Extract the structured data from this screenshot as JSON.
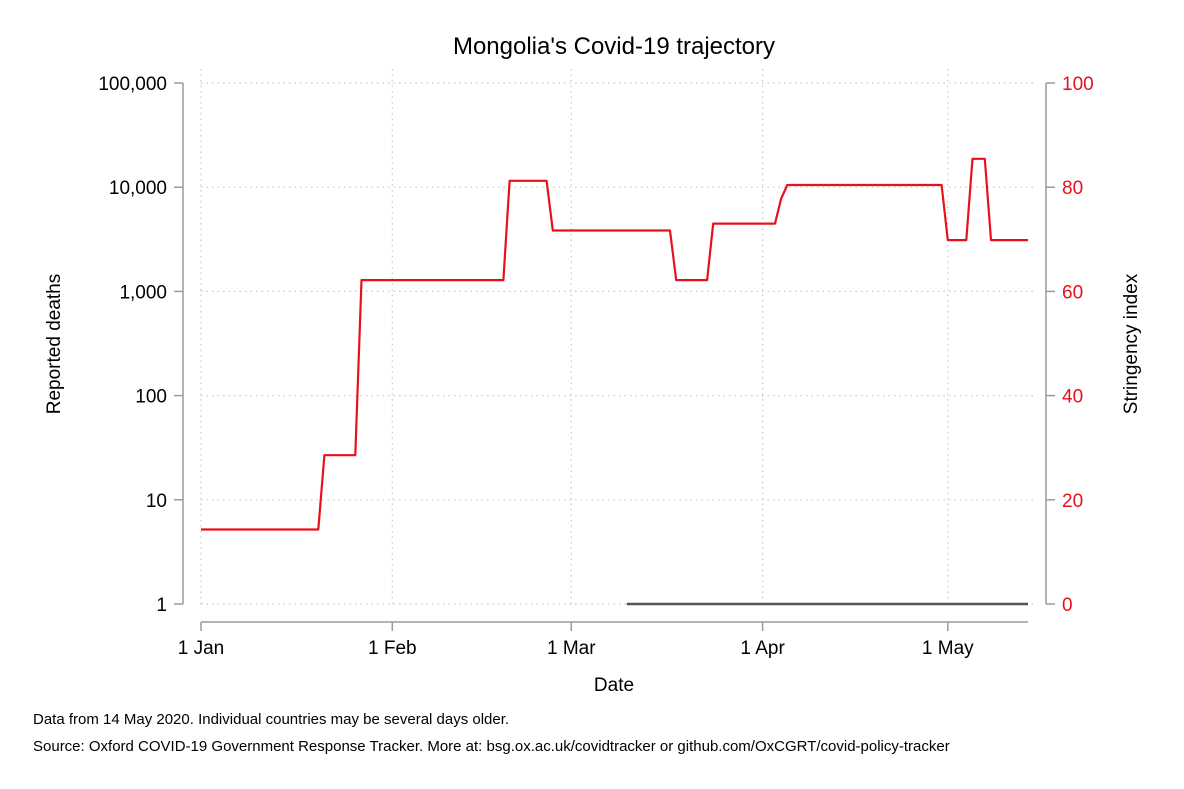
{
  "chart_data": {
    "type": "line",
    "title": "Mongolia's Covid-19 trajectory",
    "xlabel": "Date",
    "ylabel": "Reported deaths",
    "ylabel_right": "Stringency index",
    "x_ticks": [
      "1 Jan",
      "1 Feb",
      "1 Mar",
      "1 Apr",
      "1 May"
    ],
    "y_ticks": [
      "1",
      "10",
      "100",
      "1,000",
      "10,000",
      "100,000"
    ],
    "y_right_ticks": [
      "0",
      "20",
      "40",
      "60",
      "80",
      "100"
    ],
    "x_range": [
      "2020-01-01",
      "2020-05-14"
    ],
    "y_scale": "log",
    "ylim": [
      1,
      100000
    ],
    "y_right_lim": [
      0,
      100
    ],
    "grid": true,
    "colors": {
      "stringency": "#e8111b",
      "deaths": "#555555",
      "axis": "#9a9a9a"
    },
    "series": [
      {
        "name": "Stringency index",
        "axis": "right",
        "x": [
          "2020-01-01",
          "2020-01-20",
          "2020-01-21",
          "2020-01-26",
          "2020-01-27",
          "2020-02-19",
          "2020-02-20",
          "2020-02-26",
          "2020-02-27",
          "2020-03-17",
          "2020-03-18",
          "2020-03-23",
          "2020-03-24",
          "2020-04-03",
          "2020-04-04",
          "2020-04-05",
          "2020-04-30",
          "2020-05-01",
          "2020-05-04",
          "2020-05-05",
          "2020-05-07",
          "2020-05-08",
          "2020-05-14"
        ],
        "values": [
          14.29,
          14.29,
          28.57,
          28.57,
          62.17,
          62.17,
          81.22,
          81.22,
          71.69,
          71.69,
          62.17,
          62.17,
          73.02,
          73.02,
          77.78,
          80.42,
          80.42,
          69.84,
          69.84,
          85.45,
          85.45,
          69.84,
          69.84
        ]
      },
      {
        "name": "Reported deaths",
        "axis": "left",
        "x": [
          "2020-03-10",
          "2020-05-14"
        ],
        "values": [
          1,
          1
        ]
      }
    ]
  },
  "footer": {
    "note": "Data from 14 May 2020. Individual countries may be several days older.",
    "source": "Source: Oxford COVID-19 Government Response Tracker. More at: bsg.ox.ac.uk/covidtracker or github.com/OxCGRT/covid-policy-tracker"
  }
}
